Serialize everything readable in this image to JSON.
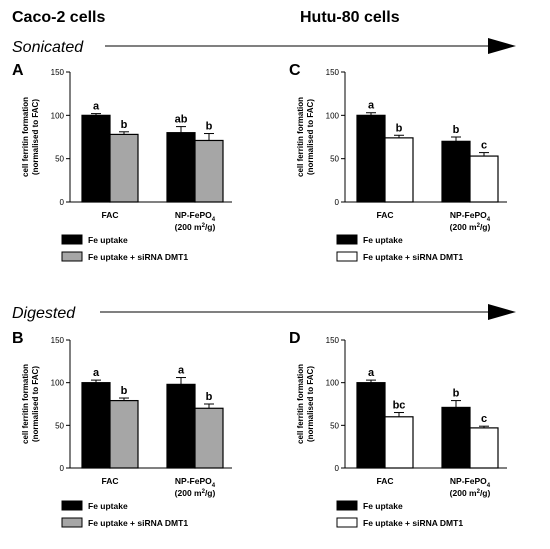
{
  "figure": {
    "left_header": "Caco-2 cells",
    "right_header": "Hutu-80 cells",
    "sections": [
      "Sonicated",
      "Digested"
    ]
  },
  "legend": {
    "uptake": "Fe uptake",
    "sirna": "Fe uptake + siRNA DMT1"
  },
  "chart_data": [
    {
      "type": "bar",
      "panel": "A",
      "categories": [
        "FAC",
        "NP-FePO4 (200 m2/g)"
      ],
      "ylabel": "cell ferritin formation (normalised to FAC)",
      "ylim": [
        0,
        150
      ],
      "yticks": [
        0,
        50,
        100,
        150
      ],
      "series": [
        {
          "name": "Fe uptake",
          "values": [
            100,
            80
          ],
          "errors": [
            2,
            7
          ]
        },
        {
          "name": "Fe uptake + siRNA DMT1",
          "values": [
            78,
            71
          ],
          "errors": [
            3,
            8
          ]
        }
      ],
      "significance": [
        [
          "a",
          "ab"
        ],
        [
          "b",
          "b"
        ]
      ],
      "colors": [
        "#000000",
        "#a6a6a6"
      ]
    },
    {
      "type": "bar",
      "panel": "C",
      "categories": [
        "FAC",
        "NP-FePO4 (200 m2/g)"
      ],
      "ylabel": "cell ferritin formation (normalised to FAC)",
      "ylim": [
        0,
        150
      ],
      "yticks": [
        0,
        50,
        100,
        150
      ],
      "series": [
        {
          "name": "Fe uptake",
          "values": [
            100,
            70
          ],
          "errors": [
            3,
            5
          ]
        },
        {
          "name": "Fe uptake + siRNA DMT1",
          "values": [
            74,
            53
          ],
          "errors": [
            3,
            4
          ]
        }
      ],
      "significance": [
        [
          "a",
          "b"
        ],
        [
          "b",
          "c"
        ]
      ],
      "colors": [
        "#000000",
        "#ffffff"
      ]
    },
    {
      "type": "bar",
      "panel": "B",
      "categories": [
        "FAC",
        "NP-FePO4 (200 m2/g)"
      ],
      "ylabel": "cell ferritin formation (normalised to FAC)",
      "ylim": [
        0,
        150
      ],
      "yticks": [
        0,
        50,
        100,
        150
      ],
      "series": [
        {
          "name": "Fe uptake",
          "values": [
            100,
            98
          ],
          "errors": [
            3,
            8
          ]
        },
        {
          "name": "Fe uptake + siRNA DMT1",
          "values": [
            79,
            70
          ],
          "errors": [
            3,
            5
          ]
        }
      ],
      "significance": [
        [
          "a",
          "a"
        ],
        [
          "b",
          "b"
        ]
      ],
      "colors": [
        "#000000",
        "#a6a6a6"
      ]
    },
    {
      "type": "bar",
      "panel": "D",
      "categories": [
        "FAC",
        "NP-FePO4 (200 m2/g)"
      ],
      "ylabel": "cell ferritin formation (normalised to FAC)",
      "ylim": [
        0,
        150
      ],
      "yticks": [
        0,
        50,
        100,
        150
      ],
      "series": [
        {
          "name": "Fe uptake",
          "values": [
            100,
            71
          ],
          "errors": [
            3,
            8
          ]
        },
        {
          "name": "Fe uptake + siRNA DMT1",
          "values": [
            60,
            47
          ],
          "errors": [
            5,
            2
          ]
        }
      ],
      "significance": [
        [
          "a",
          "b"
        ],
        [
          "bc",
          "c"
        ]
      ],
      "colors": [
        "#000000",
        "#ffffff"
      ]
    }
  ]
}
